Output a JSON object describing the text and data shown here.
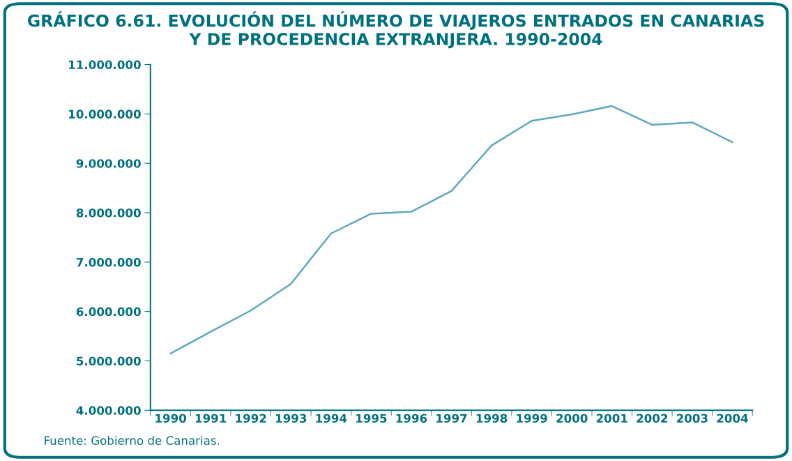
{
  "chart_data": {
    "type": "line",
    "title": "GRÁFICO 6.61. EVOLUCIÓN DEL NÚMERO DE VIAJEROS ENTRADOS EN CANARIAS\nY DE PROCEDENCIA EXTRANJERA. 1990-2004",
    "categories": [
      "1990",
      "1991",
      "1992",
      "1993",
      "1994",
      "1995",
      "1996",
      "1997",
      "1998",
      "1999",
      "2000",
      "2001",
      "2002",
      "2003",
      "2004"
    ],
    "series": [
      {
        "color": "#5ea8bf",
        "values": [
          5150000,
          5590000,
          6020000,
          6560000,
          7580000,
          7980000,
          8020000,
          8440000,
          9360000,
          9860000,
          9990000,
          10160000,
          9780000,
          9830000,
          9430000
        ]
      }
    ],
    "ylim": [
      4000000,
      11000000
    ],
    "yticks": [
      {
        "value": 4000000,
        "label": "4.000.000"
      },
      {
        "value": 5000000,
        "label": "5.000.000"
      },
      {
        "value": 6000000,
        "label": "6.000.000"
      },
      {
        "value": 7000000,
        "label": "7.000.000"
      },
      {
        "value": 8000000,
        "label": "8.000.000"
      },
      {
        "value": 9000000,
        "label": "9.000.000"
      },
      {
        "value": 10000000,
        "label": "10.000.000"
      },
      {
        "value": 11000000,
        "label": "11.000.000"
      }
    ],
    "grid": false,
    "marker": "none",
    "line_style": "solid",
    "annotations": [
      "Fuente: Gobierno de Canarias."
    ]
  }
}
